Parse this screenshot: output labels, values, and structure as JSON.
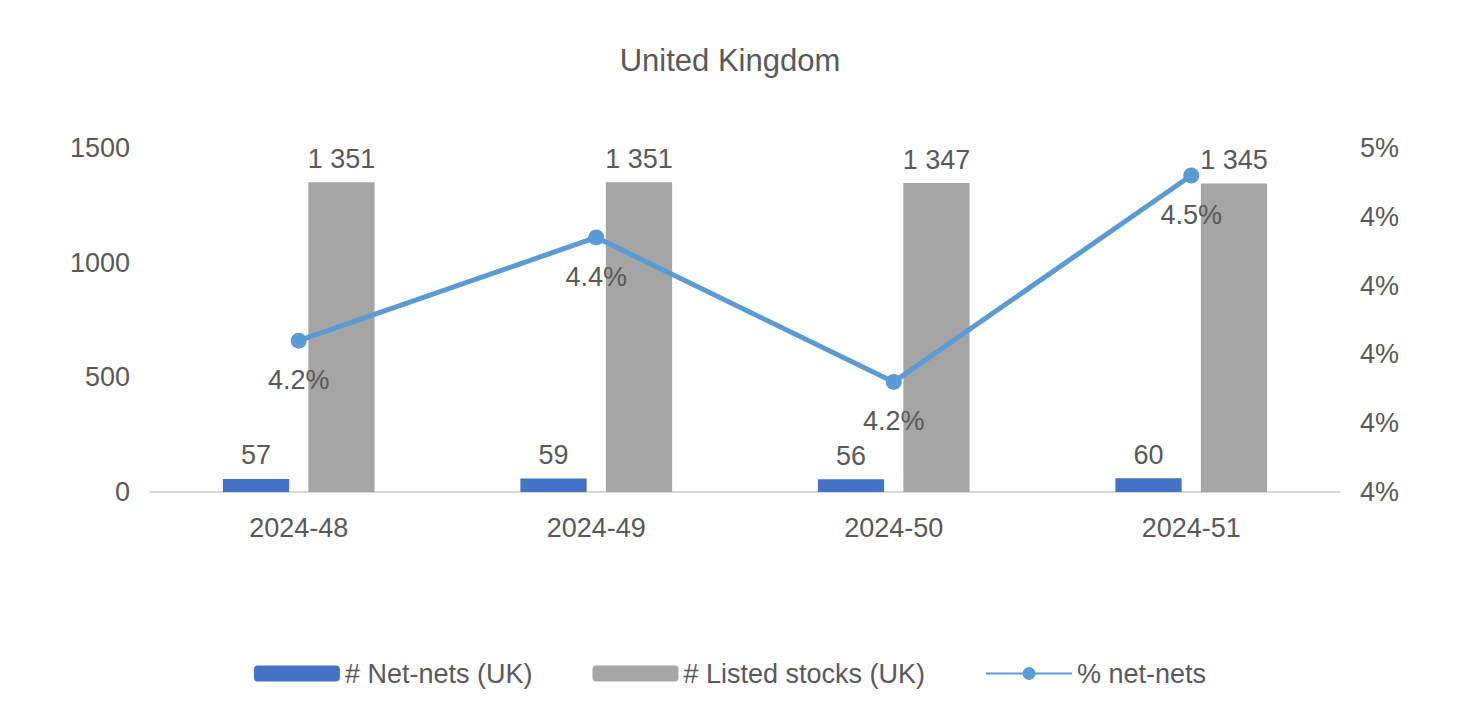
{
  "chart_data": {
    "type": "bar",
    "title": "United Kingdom",
    "categories": [
      "2024-48",
      "2024-49",
      "2024-50",
      "2024-51"
    ],
    "series": [
      {
        "name": "# Net-nets (UK)",
        "type": "bar",
        "color": "#4472c4",
        "values": [
          57,
          59,
          56,
          60
        ]
      },
      {
        "name": "# Listed stocks (UK)",
        "type": "bar",
        "color": "#a5a5a5",
        "values": [
          1351,
          1351,
          1347,
          1345
        ],
        "value_labels": [
          "1 351",
          "1 351",
          "1 347",
          "1 345"
        ]
      },
      {
        "name": "% net-nets",
        "type": "line",
        "color": "#5b9bd5",
        "marker": "circle",
        "axis": "y2",
        "values": [
          4.22,
          4.37,
          4.16,
          4.46
        ],
        "value_labels": [
          "4.2%",
          "4.4%",
          "4.2%",
          "4.5%"
        ]
      }
    ],
    "ylim": [
      0,
      1500
    ],
    "yticks": [
      0,
      500,
      1000,
      1500
    ],
    "y2lim": [
      4,
      4.5
    ],
    "y2ticks": [
      {
        "value": 4.0,
        "label": "4%"
      },
      {
        "value": 4.1,
        "label": "4%"
      },
      {
        "value": 4.2,
        "label": "4%"
      },
      {
        "value": 4.3,
        "label": "4%"
      },
      {
        "value": 4.4,
        "label": "4%"
      },
      {
        "value": 4.5,
        "label": "5%"
      }
    ],
    "grid": false,
    "data_labels": true,
    "legend": "bottom"
  }
}
